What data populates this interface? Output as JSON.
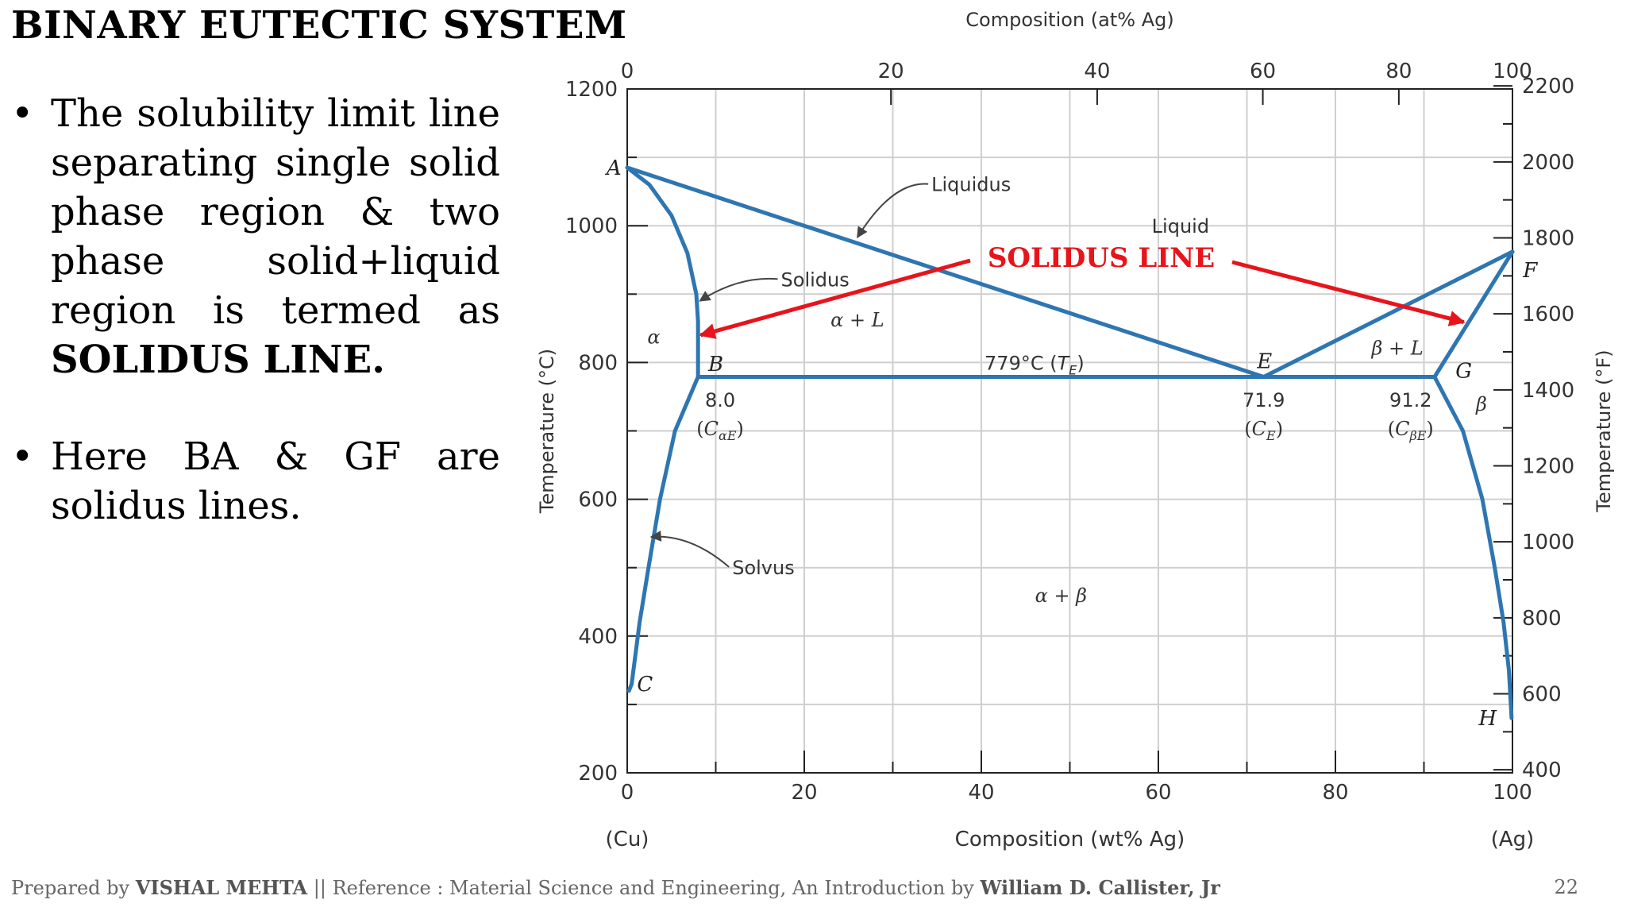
{
  "slide": {
    "title": "BINARY EUTECTIC SYSTEM",
    "bullets": [
      {
        "text": "The solubility limit line separating single solid phase region & two phase solid+liquid region is termed as ",
        "bold": "SOLIDUS LINE."
      },
      {
        "text": "Here BA & GF are solidus lines.",
        "bold": ""
      }
    ],
    "footer": {
      "prefix": "Prepared by ",
      "author": "VISHAL MEHTA",
      "middle": " || Reference : Material Science and Engineering, An Introduction by ",
      "book_author": "William D. Callister, Jr"
    },
    "page_number": "22"
  },
  "colors": {
    "curve": "#2e76b2",
    "annotation": "#e8141b",
    "grid": "#cfcfcf",
    "axis": "#222222",
    "text": "#333333"
  },
  "chart_data": {
    "type": "line",
    "title": "",
    "xlabel": "Composition (wt% Ag)",
    "x2label": "Composition (at% Ag)",
    "ylabel": "Temperature (°C)",
    "y2label": "Temperature (°F)",
    "xlim": [
      0,
      100
    ],
    "ylim": [
      200,
      1200
    ],
    "y2lim": [
      392,
      2192
    ],
    "x_ticks": [
      0,
      20,
      40,
      60,
      80,
      100
    ],
    "x_minor_ticks": [
      10,
      30,
      50,
      70,
      90
    ],
    "x2_ticks": [
      0,
      20,
      40,
      60,
      80,
      100
    ],
    "y_ticks": [
      200,
      400,
      600,
      800,
      1000,
      1200
    ],
    "y_minor_ticks": [
      300,
      500,
      700,
      900,
      1100
    ],
    "y2_ticks": [
      400,
      600,
      800,
      1000,
      1200,
      1400,
      1600,
      1800,
      2000,
      2200
    ],
    "grid": true,
    "axis_end_labels": {
      "left": "(Cu)",
      "right": "(Ag)"
    },
    "series": [
      {
        "id": "liquidus-AE",
        "points": [
          [
            0,
            1085
          ],
          [
            71.9,
            779
          ]
        ]
      },
      {
        "id": "liquidus-FE",
        "points": [
          [
            100,
            962
          ],
          [
            71.9,
            779
          ]
        ]
      },
      {
        "id": "eutectic-BG",
        "points": [
          [
            8.0,
            779
          ],
          [
            91.2,
            779
          ]
        ]
      },
      {
        "id": "solidus-AB",
        "points": [
          [
            0,
            1085
          ],
          [
            2.5,
            1060
          ],
          [
            5,
            1015
          ],
          [
            6.8,
            960
          ],
          [
            7.8,
            900
          ],
          [
            8.0,
            860
          ],
          [
            8.0,
            779
          ]
        ]
      },
      {
        "id": "solvus-BC",
        "points": [
          [
            8.0,
            779
          ],
          [
            5.4,
            700
          ],
          [
            3.7,
            600
          ],
          [
            2.4,
            500
          ],
          [
            1.4,
            420
          ],
          [
            0.5,
            330
          ],
          [
            0.2,
            320
          ]
        ]
      },
      {
        "id": "solidus-FG",
        "points": [
          [
            100,
            962
          ],
          [
            91.2,
            779
          ]
        ]
      },
      {
        "id": "solvus-GH",
        "points": [
          [
            91.2,
            779
          ],
          [
            94.4,
            700
          ],
          [
            96.6,
            600
          ],
          [
            98.0,
            500
          ],
          [
            99.0,
            420
          ],
          [
            99.6,
            350
          ],
          [
            99.9,
            280
          ]
        ]
      }
    ],
    "point_labels": [
      {
        "text": "A",
        "x": -1.5,
        "y": 1085
      },
      {
        "text": "B",
        "x": 10.0,
        "y": 798
      },
      {
        "text": "C",
        "x": 2.0,
        "y": 330
      },
      {
        "text": "E",
        "x": 72.0,
        "y": 802
      },
      {
        "text": "F",
        "x": 102.0,
        "y": 935
      },
      {
        "text": "G",
        "x": 94.5,
        "y": 788
      },
      {
        "text": "H",
        "x": 97.2,
        "y": 280
      }
    ],
    "value_labels": [
      {
        "top": "8.0",
        "sub": "αE",
        "x": 10.5
      },
      {
        "top": "71.9",
        "sub": "E",
        "x": 71.9
      },
      {
        "top": "91.2",
        "sub": "βE",
        "x": 88.5
      }
    ],
    "region_labels": [
      {
        "text": "Liquid",
        "x": 62.5,
        "y": 1000
      },
      {
        "text": "α + L",
        "x": 26,
        "y": 863
      },
      {
        "text": "α",
        "x": 3,
        "y": 838
      },
      {
        "text": "β + L",
        "x": 87,
        "y": 822
      },
      {
        "text": "β",
        "x": 96.5,
        "y": 740
      },
      {
        "text": "α + β",
        "x": 49,
        "y": 460
      }
    ],
    "eutectic_label": {
      "text": "779°C (",
      "italic": "T",
      "sub": "E",
      "close": ")",
      "x": 46,
      "y": 800
    },
    "annotations": [
      {
        "text": "Liquidus",
        "x": 34,
        "y": 1061,
        "target": [
          26,
          983
        ]
      },
      {
        "text": "Solidus",
        "x": 17,
        "y": 922,
        "target": [
          8.2,
          890
        ]
      },
      {
        "text": "Solvus",
        "x": 11.5,
        "y": 501,
        "target": [
          2.7,
          545
        ]
      }
    ],
    "highlight": {
      "text": "SOLIDUS LINE",
      "arrow_targets": [
        [
          8.3,
          840
        ],
        [
          94.5,
          859
        ]
      ]
    }
  }
}
